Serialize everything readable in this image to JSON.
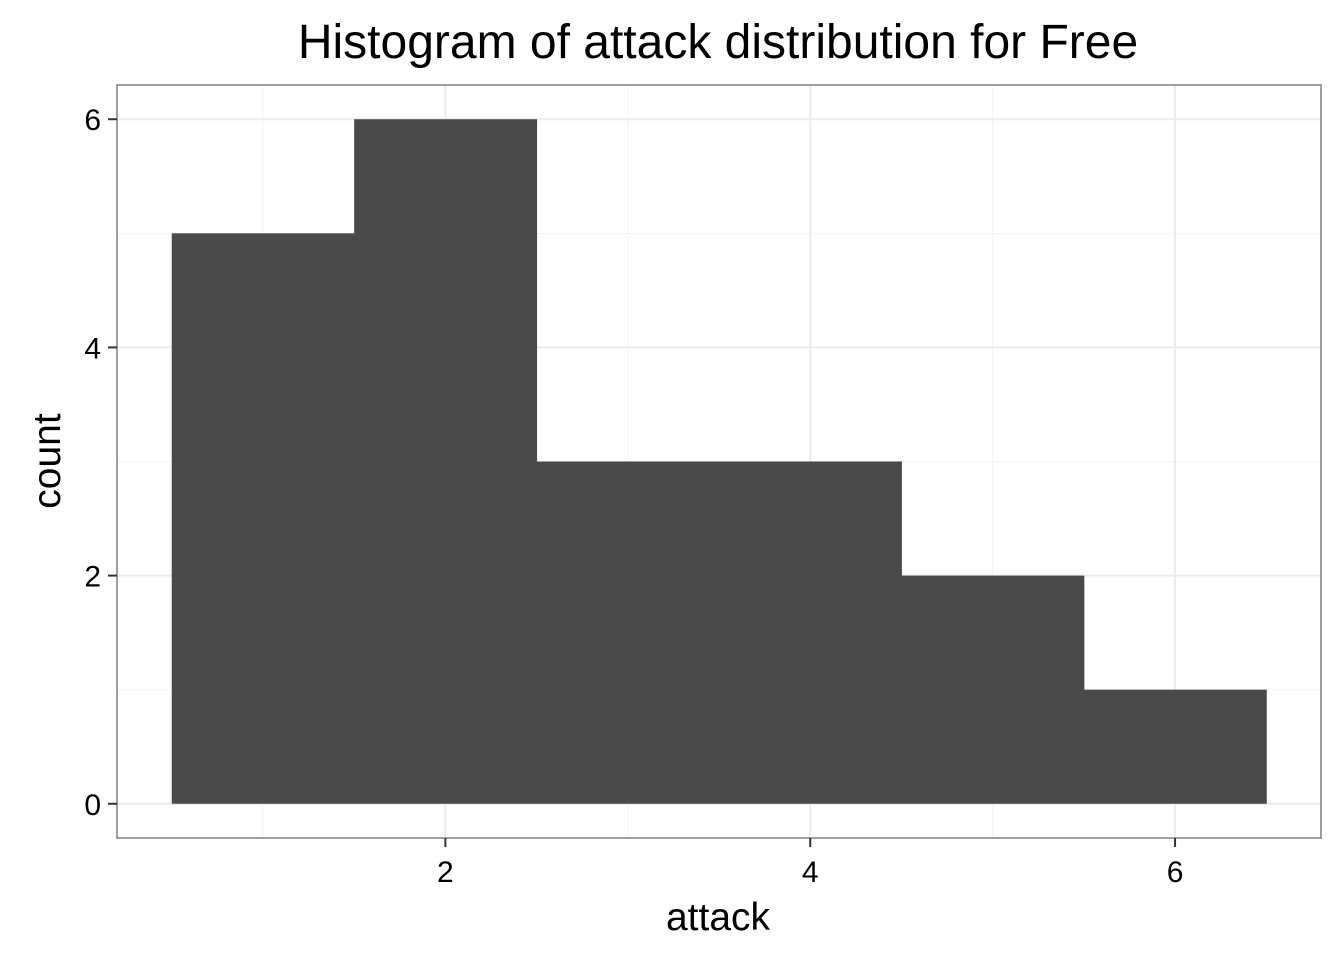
{
  "chart_data": {
    "type": "bar",
    "title": "Histogram of attack distribution for Free",
    "xlabel": "attack",
    "ylabel": "count",
    "bins": [
      {
        "x_min": 0.5,
        "x_max": 1.5,
        "count": 5
      },
      {
        "x_min": 1.5,
        "x_max": 2.5,
        "count": 6
      },
      {
        "x_min": 2.5,
        "x_max": 3.5,
        "count": 3
      },
      {
        "x_min": 3.5,
        "x_max": 4.5,
        "count": 3
      },
      {
        "x_min": 4.5,
        "x_max": 5.5,
        "count": 2
      },
      {
        "x_min": 5.5,
        "x_max": 6.5,
        "count": 1
      }
    ],
    "xlim": [
      0.2,
      6.8
    ],
    "ylim": [
      -0.3,
      6.3
    ],
    "x_ticks": [
      "2",
      "4",
      "6"
    ],
    "y_ticks": [
      "0",
      "2",
      "4",
      "6"
    ],
    "x_minor": [
      1,
      3,
      5
    ],
    "y_minor": [
      1,
      3,
      5
    ],
    "grid": true,
    "bar_color": "#4a4a4a",
    "background": "#ffffff"
  }
}
